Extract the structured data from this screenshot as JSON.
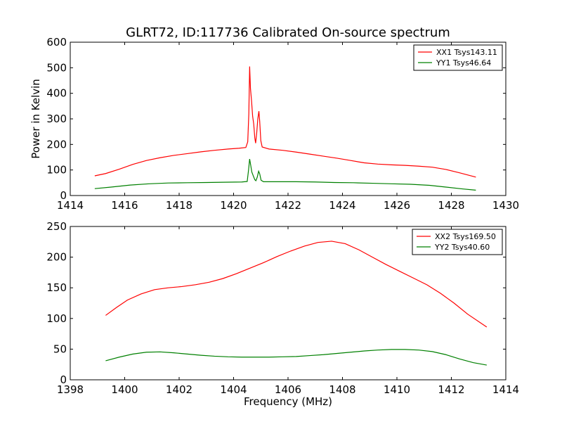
{
  "chart_data": [
    {
      "type": "line",
      "title": "GLRT72, ID:117736 Calibrated On-source spectrum",
      "xlabel": "",
      "ylabel": "Power in Kelvin",
      "xlim": [
        1414,
        1430
      ],
      "ylim": [
        0,
        600
      ],
      "x_ticks": [
        "1414",
        "1416",
        "1418",
        "1420",
        "1422",
        "1424",
        "1426",
        "1428",
        "1430"
      ],
      "y_ticks": [
        "0",
        "100",
        "200",
        "300",
        "400",
        "500",
        "600"
      ],
      "grid": false,
      "legend_position": "top-right",
      "series": [
        {
          "name": "XX1 Tsys143.11",
          "color": "#ff0000",
          "points": [
            [
              1414.9,
              77
            ],
            [
              1415.3,
              86
            ],
            [
              1415.8,
              103
            ],
            [
              1416.3,
              122
            ],
            [
              1416.8,
              137
            ],
            [
              1417.3,
              148
            ],
            [
              1417.8,
              157
            ],
            [
              1418.3,
              164
            ],
            [
              1418.8,
              171
            ],
            [
              1419.3,
              177
            ],
            [
              1419.8,
              182
            ],
            [
              1420.2,
              185
            ],
            [
              1420.45,
              188
            ],
            [
              1420.52,
              210
            ],
            [
              1420.56,
              320
            ],
            [
              1420.59,
              505
            ],
            [
              1420.62,
              420
            ],
            [
              1420.66,
              370
            ],
            [
              1420.7,
              310
            ],
            [
              1420.74,
              280
            ],
            [
              1420.78,
              225
            ],
            [
              1420.81,
              205
            ],
            [
              1420.85,
              245
            ],
            [
              1420.89,
              300
            ],
            [
              1420.93,
              330
            ],
            [
              1420.96,
              290
            ],
            [
              1421.0,
              215
            ],
            [
              1421.05,
              190
            ],
            [
              1421.3,
              182
            ],
            [
              1421.8,
              177
            ],
            [
              1422.3,
              170
            ],
            [
              1422.8,
              162
            ],
            [
              1423.3,
              154
            ],
            [
              1423.8,
              146
            ],
            [
              1424.3,
              137
            ],
            [
              1424.8,
              128
            ],
            [
              1425.3,
              123
            ],
            [
              1425.8,
              120
            ],
            [
              1426.3,
              118
            ],
            [
              1426.8,
              115
            ],
            [
              1427.3,
              111
            ],
            [
              1427.8,
              102
            ],
            [
              1428.3,
              89
            ],
            [
              1428.9,
              72
            ]
          ]
        },
        {
          "name": "YY1 Tsys46.64",
          "color": "#008000",
          "points": [
            [
              1414.9,
              27
            ],
            [
              1415.5,
              33
            ],
            [
              1416.2,
              41
            ],
            [
              1416.9,
              46
            ],
            [
              1417.6,
              49
            ],
            [
              1418.3,
              50
            ],
            [
              1419.0,
              51
            ],
            [
              1419.6,
              52
            ],
            [
              1420.3,
              53
            ],
            [
              1420.5,
              55
            ],
            [
              1420.55,
              100
            ],
            [
              1420.59,
              143
            ],
            [
              1420.63,
              118
            ],
            [
              1420.67,
              92
            ],
            [
              1420.72,
              78
            ],
            [
              1420.78,
              62
            ],
            [
              1420.82,
              58
            ],
            [
              1420.87,
              72
            ],
            [
              1420.92,
              95
            ],
            [
              1420.96,
              85
            ],
            [
              1421.01,
              60
            ],
            [
              1421.1,
              54
            ],
            [
              1421.6,
              54
            ],
            [
              1422.3,
              54
            ],
            [
              1423.0,
              53
            ],
            [
              1423.7,
              51
            ],
            [
              1424.4,
              50
            ],
            [
              1425.1,
              48
            ],
            [
              1425.8,
              46
            ],
            [
              1426.5,
              44
            ],
            [
              1427.2,
              40
            ],
            [
              1427.8,
              33
            ],
            [
              1428.4,
              26
            ],
            [
              1428.9,
              21
            ]
          ]
        }
      ]
    },
    {
      "type": "line",
      "title": "",
      "xlabel": "Frequency (MHz)",
      "ylabel": "",
      "xlim": [
        1398,
        1414
      ],
      "ylim": [
        0,
        250
      ],
      "x_ticks": [
        "1398",
        "1400",
        "1402",
        "1404",
        "1406",
        "1408",
        "1410",
        "1412",
        "1414"
      ],
      "y_ticks": [
        "0",
        "50",
        "100",
        "150",
        "200",
        "250"
      ],
      "grid": false,
      "legend_position": "top-right",
      "series": [
        {
          "name": "XX2 Tsys169.50",
          "color": "#ff0000",
          "points": [
            [
              1399.3,
              105
            ],
            [
              1399.7,
              118
            ],
            [
              1400.1,
              130
            ],
            [
              1400.6,
              140
            ],
            [
              1401.1,
              147
            ],
            [
              1401.6,
              150
            ],
            [
              1402.1,
              152
            ],
            [
              1402.6,
              155
            ],
            [
              1403.1,
              159
            ],
            [
              1403.6,
              165
            ],
            [
              1404.1,
              173
            ],
            [
              1404.6,
              182
            ],
            [
              1405.1,
              191
            ],
            [
              1405.6,
              201
            ],
            [
              1406.1,
              210
            ],
            [
              1406.6,
              218
            ],
            [
              1407.1,
              224
            ],
            [
              1407.6,
              226
            ],
            [
              1408.1,
              222
            ],
            [
              1408.6,
              212
            ],
            [
              1409.1,
              200
            ],
            [
              1409.6,
              188
            ],
            [
              1410.1,
              177
            ],
            [
              1410.6,
              166
            ],
            [
              1411.1,
              155
            ],
            [
              1411.6,
              141
            ],
            [
              1412.1,
              125
            ],
            [
              1412.6,
              107
            ],
            [
              1413.3,
              86
            ]
          ]
        },
        {
          "name": "YY2 Tsys40.60",
          "color": "#008000",
          "points": [
            [
              1399.3,
              31
            ],
            [
              1399.8,
              37
            ],
            [
              1400.3,
              42
            ],
            [
              1400.8,
              45
            ],
            [
              1401.3,
              45.5
            ],
            [
              1401.8,
              44
            ],
            [
              1402.3,
              42
            ],
            [
              1402.8,
              40
            ],
            [
              1403.3,
              38.5
            ],
            [
              1403.8,
              37.5
            ],
            [
              1404.3,
              37
            ],
            [
              1404.8,
              37
            ],
            [
              1405.3,
              37
            ],
            [
              1405.8,
              37.5
            ],
            [
              1406.3,
              38
            ],
            [
              1406.8,
              39.5
            ],
            [
              1407.3,
              41
            ],
            [
              1407.8,
              43
            ],
            [
              1408.3,
              45
            ],
            [
              1408.8,
              47
            ],
            [
              1409.3,
              48.5
            ],
            [
              1409.8,
              49.5
            ],
            [
              1410.3,
              49.5
            ],
            [
              1410.8,
              48.5
            ],
            [
              1411.3,
              46
            ],
            [
              1411.8,
              41
            ],
            [
              1412.3,
              34
            ],
            [
              1412.8,
              28
            ],
            [
              1413.3,
              24
            ]
          ]
        }
      ]
    }
  ]
}
